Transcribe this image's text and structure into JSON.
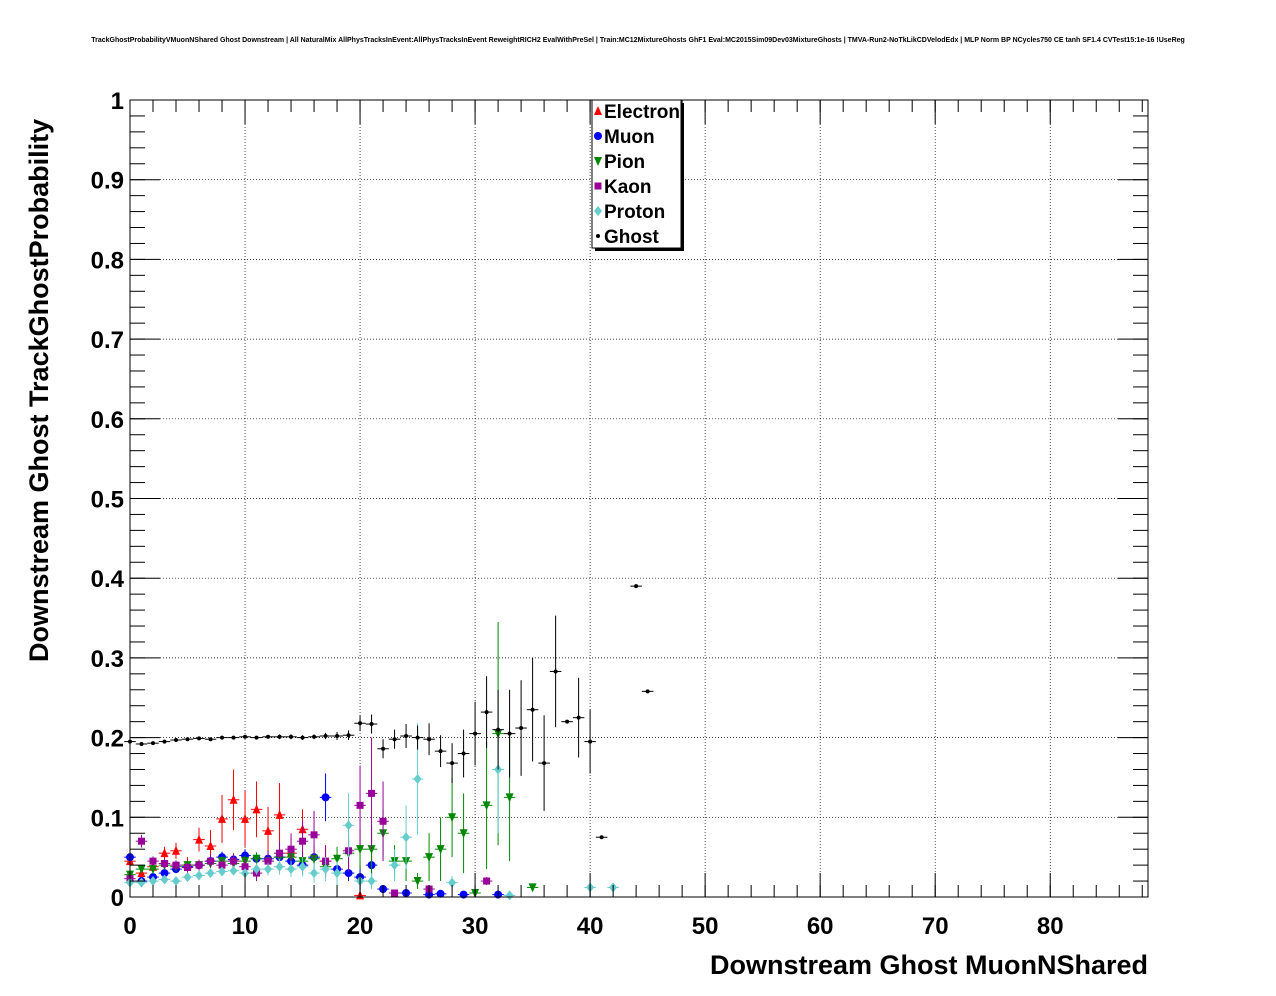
{
  "chart_data": {
    "type": "scatter",
    "title": "TrackGhostProbabilityVMuonNShared Ghost Downstream | All NaturalMix AllPhysTracksInEvent:AllPhysTracksInEvent ReweightRICH2 EvalWithPreSel | Train:MC12MixtureGhosts GhF1 Eval:MC2015Sim09Dev03MixtureGhosts | TMVA-Run2-NoTkLikCDVelodEdx | MLP Norm BP NCycles750 CE tanh SF1.4 CVTest15:1e-16 !UseReg",
    "xlabel": "Downstream Ghost MuonNShared",
    "ylabel": "Downstream Ghost TrackGhostProbability",
    "xlim": [
      0,
      88.5
    ],
    "ylim": [
      0,
      1
    ],
    "x_ticks": [
      "0",
      "10",
      "20",
      "30",
      "40",
      "50",
      "60",
      "70",
      "80"
    ],
    "y_ticks": [
      "0",
      "0.1",
      "0.2",
      "0.3",
      "0.4",
      "0.5",
      "0.6",
      "0.7",
      "0.8",
      "0.9",
      "1"
    ],
    "grid": true,
    "legend_position": "top-center",
    "series": [
      {
        "name": "Electron",
        "color": "#ff0000",
        "marker": "triangle-up",
        "points": [
          [
            0,
            0.045,
            0.005
          ],
          [
            1,
            0.03,
            0.005
          ],
          [
            2,
            0.038,
            0.006
          ],
          [
            3,
            0.055,
            0.008
          ],
          [
            4,
            0.058,
            0.01
          ],
          [
            5,
            0.04,
            0.01
          ],
          [
            6,
            0.072,
            0.015
          ],
          [
            7,
            0.064,
            0.02
          ],
          [
            8,
            0.098,
            0.03
          ],
          [
            9,
            0.122,
            0.038
          ],
          [
            10,
            0.098,
            0.035
          ],
          [
            11,
            0.11,
            0.035
          ],
          [
            12,
            0.083,
            0.03
          ],
          [
            13,
            0.103,
            0.04
          ],
          [
            14,
            0.055,
            0.02
          ],
          [
            15,
            0.085,
            0.025
          ],
          [
            17,
            0.045,
            0.02
          ],
          [
            20,
            0.002,
            0.002
          ]
        ]
      },
      {
        "name": "Muon",
        "color": "#0000ff",
        "marker": "circle",
        "points": [
          [
            0,
            0.05,
            0.004
          ],
          [
            1,
            0.02,
            0.004
          ],
          [
            2,
            0.025,
            0.004
          ],
          [
            3,
            0.03,
            0.005
          ],
          [
            4,
            0.035,
            0.005
          ],
          [
            5,
            0.038,
            0.005
          ],
          [
            6,
            0.04,
            0.005
          ],
          [
            7,
            0.045,
            0.006
          ],
          [
            8,
            0.05,
            0.007
          ],
          [
            9,
            0.047,
            0.007
          ],
          [
            10,
            0.052,
            0.008
          ],
          [
            11,
            0.048,
            0.008
          ],
          [
            12,
            0.048,
            0.01
          ],
          [
            13,
            0.05,
            0.01
          ],
          [
            14,
            0.045,
            0.012
          ],
          [
            15,
            0.04,
            0.012
          ],
          [
            16,
            0.05,
            0.015
          ],
          [
            17,
            0.125,
            0.03
          ],
          [
            18,
            0.035,
            0.01
          ],
          [
            19,
            0.03,
            0.01
          ],
          [
            20,
            0.025,
            0.015
          ],
          [
            21,
            0.04,
            0.02
          ],
          [
            22,
            0.01,
            0.005
          ],
          [
            24,
            0.005,
            0.003
          ],
          [
            26,
            0.003,
            0.002
          ],
          [
            27,
            0.004,
            0.002
          ],
          [
            29,
            0.003,
            0.002
          ],
          [
            32,
            0.003,
            0.002
          ]
        ]
      },
      {
        "name": "Pion",
        "color": "#008800",
        "marker": "triangle-down",
        "points": [
          [
            0,
            0.028,
            0.003
          ],
          [
            1,
            0.035,
            0.004
          ],
          [
            2,
            0.035,
            0.004
          ],
          [
            3,
            0.04,
            0.004
          ],
          [
            4,
            0.038,
            0.004
          ],
          [
            5,
            0.04,
            0.005
          ],
          [
            6,
            0.04,
            0.005
          ],
          [
            7,
            0.042,
            0.005
          ],
          [
            8,
            0.045,
            0.006
          ],
          [
            9,
            0.042,
            0.006
          ],
          [
            10,
            0.045,
            0.007
          ],
          [
            11,
            0.048,
            0.008
          ],
          [
            12,
            0.045,
            0.01
          ],
          [
            13,
            0.05,
            0.01
          ],
          [
            14,
            0.05,
            0.01
          ],
          [
            15,
            0.045,
            0.012
          ],
          [
            16,
            0.048,
            0.012
          ],
          [
            17,
            0.038,
            0.012
          ],
          [
            18,
            0.048,
            0.015
          ],
          [
            19,
            0.055,
            0.02
          ],
          [
            20,
            0.06,
            0.025
          ],
          [
            21,
            0.06,
            0.03
          ],
          [
            22,
            0.08,
            0.03
          ],
          [
            23,
            0.045,
            0.02
          ],
          [
            24,
            0.045,
            0.025
          ],
          [
            25,
            0.02,
            0.01
          ],
          [
            26,
            0.05,
            0.03
          ],
          [
            27,
            0.06,
            0.04
          ],
          [
            28,
            0.1,
            0.05
          ],
          [
            29,
            0.08,
            0.05
          ],
          [
            30,
            0.005,
            0.003
          ],
          [
            31,
            0.115,
            0.08
          ],
          [
            32,
            0.205,
            0.14
          ],
          [
            33,
            0.125,
            0.08
          ],
          [
            35,
            0.012,
            0.005
          ]
        ]
      },
      {
        "name": "Kaon",
        "color": "#990099",
        "marker": "square",
        "points": [
          [
            0,
            0.023,
            0.003
          ],
          [
            1,
            0.07,
            0.008
          ],
          [
            2,
            0.045,
            0.006
          ],
          [
            3,
            0.042,
            0.006
          ],
          [
            4,
            0.04,
            0.006
          ],
          [
            5,
            0.037,
            0.006
          ],
          [
            6,
            0.04,
            0.007
          ],
          [
            7,
            0.045,
            0.008
          ],
          [
            8,
            0.04,
            0.008
          ],
          [
            9,
            0.045,
            0.01
          ],
          [
            10,
            0.038,
            0.01
          ],
          [
            11,
            0.03,
            0.01
          ],
          [
            12,
            0.045,
            0.012
          ],
          [
            13,
            0.055,
            0.015
          ],
          [
            14,
            0.06,
            0.02
          ],
          [
            15,
            0.07,
            0.025
          ],
          [
            16,
            0.078,
            0.03
          ],
          [
            17,
            0.045,
            0.02
          ],
          [
            19,
            0.058,
            0.025
          ],
          [
            20,
            0.115,
            0.05
          ],
          [
            21,
            0.13,
            0.07
          ],
          [
            22,
            0.095,
            0.05
          ],
          [
            23,
            0.005,
            0.003
          ],
          [
            26,
            0.01,
            0.005
          ],
          [
            31,
            0.02,
            0.005
          ]
        ]
      },
      {
        "name": "Proton",
        "color": "#66cccc",
        "marker": "diamond",
        "points": [
          [
            0,
            0.018,
            0.003
          ],
          [
            1,
            0.018,
            0.003
          ],
          [
            2,
            0.02,
            0.003
          ],
          [
            3,
            0.022,
            0.003
          ],
          [
            4,
            0.02,
            0.003
          ],
          [
            5,
            0.025,
            0.004
          ],
          [
            6,
            0.027,
            0.004
          ],
          [
            7,
            0.03,
            0.005
          ],
          [
            8,
            0.032,
            0.005
          ],
          [
            9,
            0.033,
            0.005
          ],
          [
            10,
            0.03,
            0.006
          ],
          [
            11,
            0.035,
            0.007
          ],
          [
            12,
            0.035,
            0.008
          ],
          [
            13,
            0.038,
            0.01
          ],
          [
            14,
            0.035,
            0.01
          ],
          [
            15,
            0.038,
            0.012
          ],
          [
            16,
            0.03,
            0.012
          ],
          [
            17,
            0.035,
            0.015
          ],
          [
            18,
            0.03,
            0.015
          ],
          [
            19,
            0.09,
            0.04
          ],
          [
            20,
            0.02,
            0.01
          ],
          [
            21,
            0.02,
            0.01
          ],
          [
            23,
            0.04,
            0.02
          ],
          [
            24,
            0.075,
            0.04
          ],
          [
            25,
            0.148,
            0.07
          ],
          [
            28,
            0.018,
            0.008
          ],
          [
            32,
            0.16,
            0.08
          ],
          [
            33,
            0.002,
            0.002
          ],
          [
            40,
            0.012,
            0.004
          ],
          [
            42,
            0.012,
            0.004
          ]
        ]
      },
      {
        "name": "Ghost",
        "color": "#000000",
        "marker": "dot",
        "points": [
          [
            0,
            0.195,
            0.002
          ],
          [
            1,
            0.192,
            0.002
          ],
          [
            2,
            0.193,
            0.002
          ],
          [
            3,
            0.195,
            0.002
          ],
          [
            4,
            0.197,
            0.002
          ],
          [
            5,
            0.198,
            0.002
          ],
          [
            6,
            0.199,
            0.002
          ],
          [
            7,
            0.198,
            0.002
          ],
          [
            8,
            0.2,
            0.002
          ],
          [
            9,
            0.2,
            0.002
          ],
          [
            10,
            0.201,
            0.002
          ],
          [
            11,
            0.2,
            0.002
          ],
          [
            12,
            0.201,
            0.002
          ],
          [
            13,
            0.201,
            0.003
          ],
          [
            14,
            0.201,
            0.003
          ],
          [
            15,
            0.2,
            0.003
          ],
          [
            16,
            0.201,
            0.003
          ],
          [
            17,
            0.202,
            0.004
          ],
          [
            18,
            0.202,
            0.005
          ],
          [
            19,
            0.203,
            0.006
          ],
          [
            20,
            0.218,
            0.01
          ],
          [
            21,
            0.217,
            0.012
          ],
          [
            22,
            0.186,
            0.012
          ],
          [
            23,
            0.198,
            0.012
          ],
          [
            24,
            0.202,
            0.015
          ],
          [
            25,
            0.2,
            0.015
          ],
          [
            26,
            0.198,
            0.02
          ],
          [
            27,
            0.183,
            0.02
          ],
          [
            28,
            0.168,
            0.025
          ],
          [
            29,
            0.18,
            0.03
          ],
          [
            30,
            0.205,
            0.04
          ],
          [
            31,
            0.232,
            0.045
          ],
          [
            32,
            0.21,
            0.05
          ],
          [
            33,
            0.205,
            0.055
          ],
          [
            34,
            0.212,
            0.06
          ],
          [
            35,
            0.235,
            0.065
          ],
          [
            36,
            0.168,
            0.06
          ],
          [
            37,
            0.283,
            0.07
          ],
          [
            38,
            0.22,
            0.0
          ],
          [
            39,
            0.225,
            0.05
          ],
          [
            40,
            0.195,
            0.04
          ],
          [
            41,
            0.075,
            0.0
          ],
          [
            44,
            0.39,
            0.0
          ],
          [
            45,
            0.258,
            0.0
          ]
        ]
      }
    ]
  }
}
